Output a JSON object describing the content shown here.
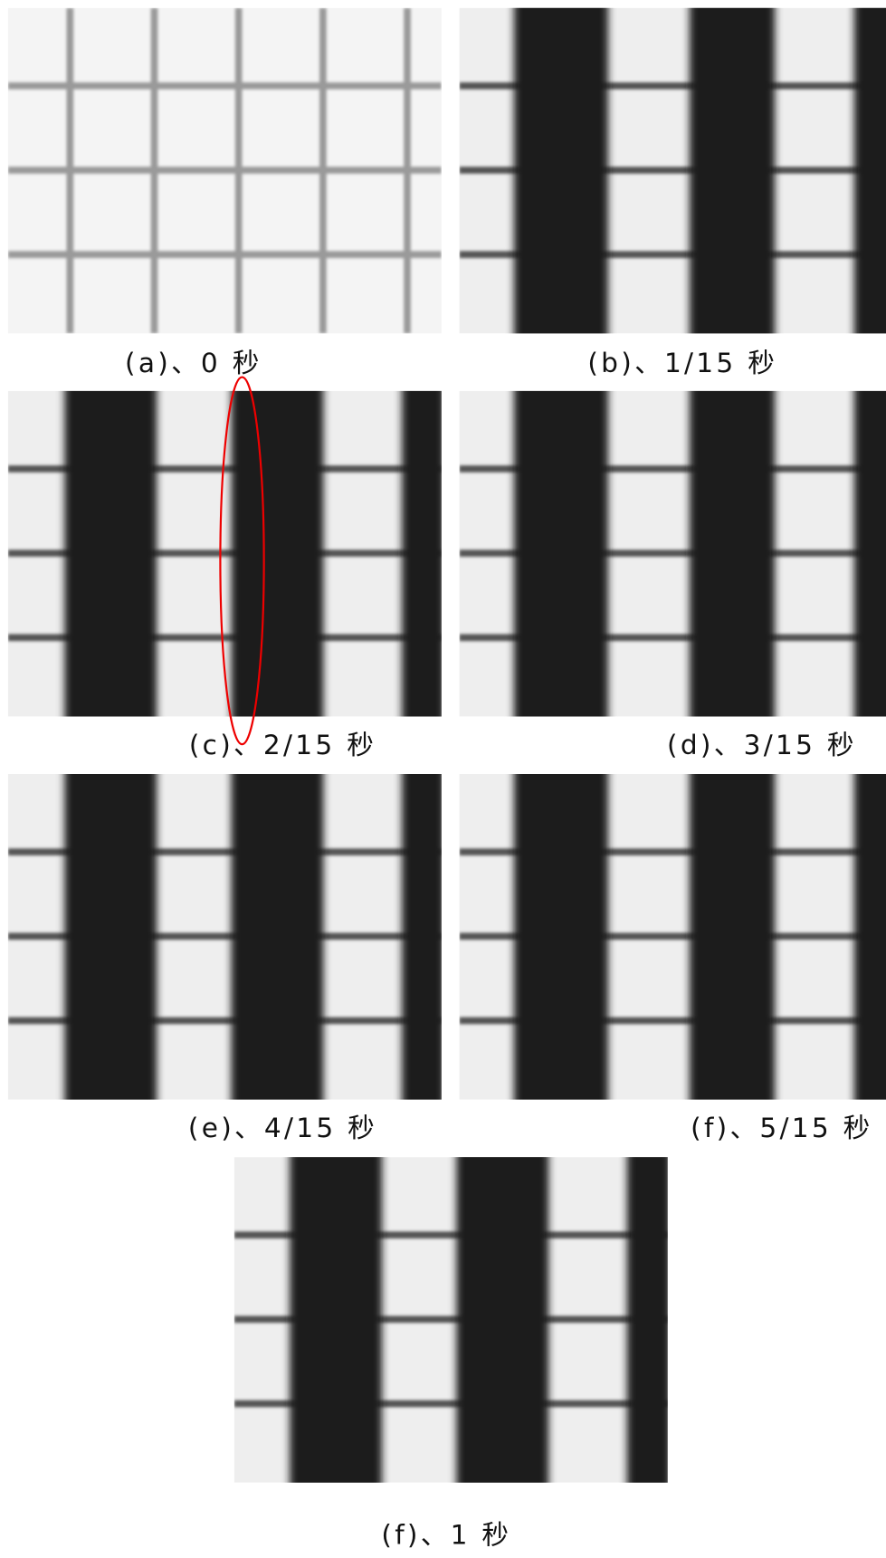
{
  "panels": [
    {
      "caption": "(a)、0 秒"
    },
    {
      "caption": "(b)、1/15 秒"
    },
    {
      "caption": "(c)、2/15 秒"
    },
    {
      "caption": "(d)、3/15 秒"
    },
    {
      "caption": "(e)、4/15 秒"
    },
    {
      "caption": "(f)、5/15 秒"
    },
    {
      "caption": "(f)、1 秒"
    }
  ]
}
